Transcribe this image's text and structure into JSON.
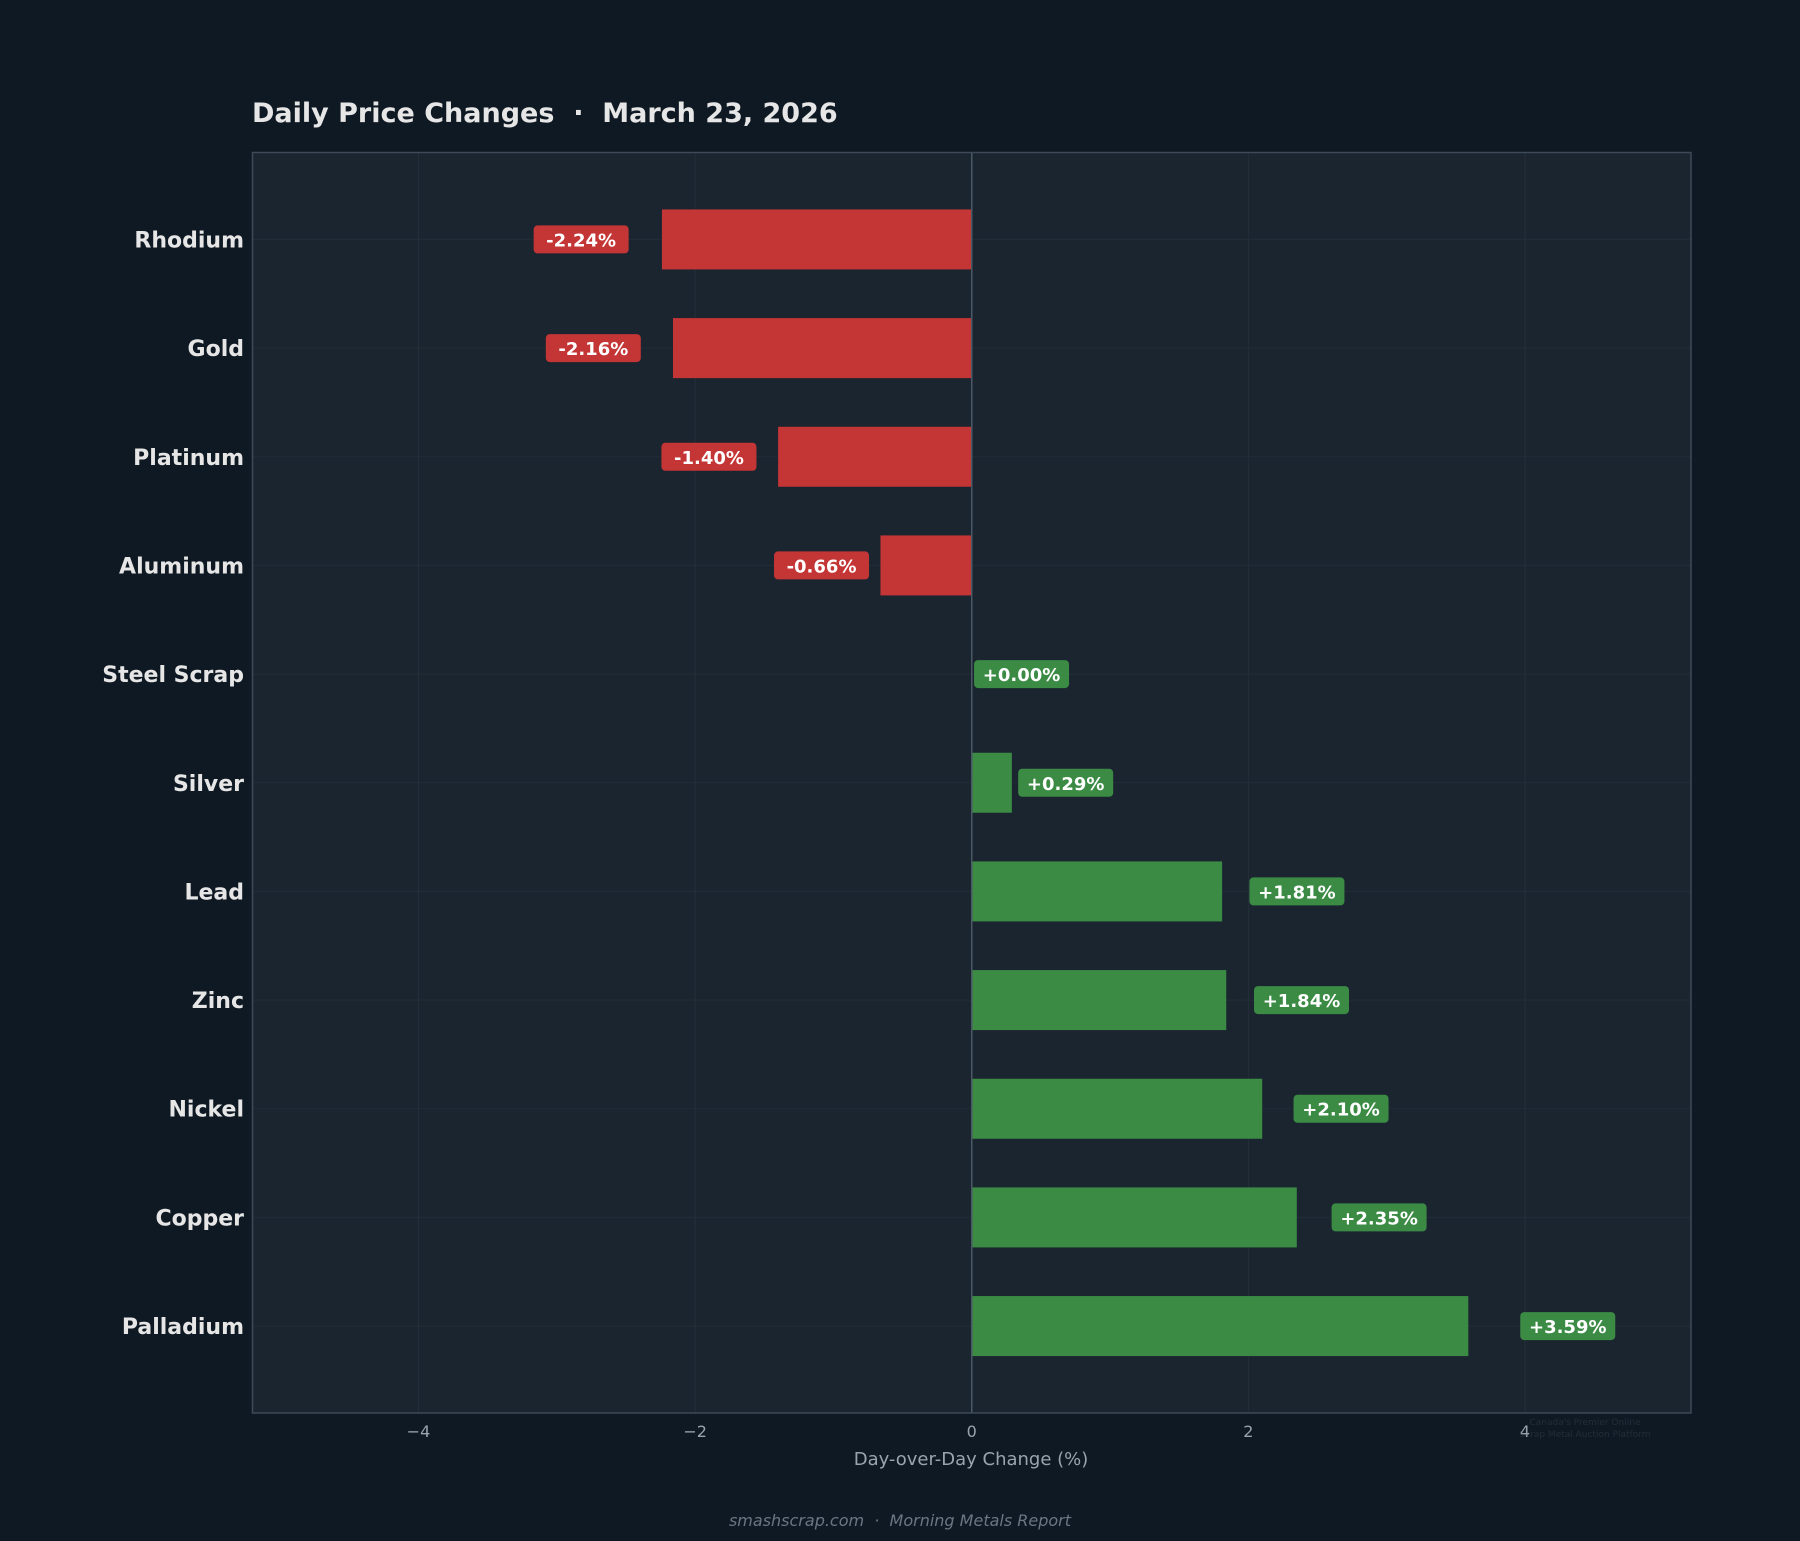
{
  "colors": {
    "background": "#0f1923",
    "plot_background": "#1b2530",
    "negative": "#c43535",
    "positive": "#3b8b45",
    "frame": "#3d4a57"
  },
  "watermark": {
    "line1": "Canada's Premier Online",
    "line2": "Scrap Metal Auction Platform"
  },
  "footer": "smashscrap.com  ·  Morning Metals Report",
  "chart_data": {
    "type": "bar",
    "orientation": "horizontal",
    "title": "Daily Price Changes  ·  March 23, 2026",
    "xlabel": "Day-over-Day Change (%)",
    "ylabel": "",
    "xlim": [
      -5.2,
      5.2
    ],
    "xticks": [
      -4,
      -2,
      0,
      2,
      4
    ],
    "xtick_labels": [
      "−4",
      "−2",
      "0",
      "2",
      "4"
    ],
    "grid": true,
    "categories": [
      "Rhodium",
      "Gold",
      "Platinum",
      "Aluminum",
      "Steel Scrap",
      "Silver",
      "Lead",
      "Zinc",
      "Nickel",
      "Copper",
      "Palladium"
    ],
    "values": [
      -2.24,
      -2.16,
      -1.4,
      -0.66,
      0.0,
      0.29,
      1.81,
      1.84,
      2.1,
      2.35,
      3.59
    ],
    "data_labels": [
      "-2.24%",
      "-2.16%",
      "-1.40%",
      "-0.66%",
      "+0.00%",
      "+0.29%",
      "+1.81%",
      "+1.84%",
      "+2.10%",
      "+2.35%",
      "+3.59%"
    ]
  }
}
